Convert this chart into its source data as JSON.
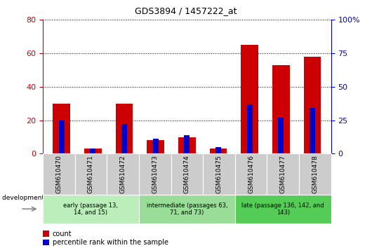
{
  "title": "GDS3894 / 1457222_at",
  "samples": [
    "GSM610470",
    "GSM610471",
    "GSM610472",
    "GSM610473",
    "GSM610474",
    "GSM610475",
    "GSM610476",
    "GSM610477",
    "GSM610478"
  ],
  "count_values": [
    30,
    3,
    30,
    8,
    10,
    3,
    65,
    53,
    58
  ],
  "percentile_values": [
    25,
    4,
    22,
    11,
    14,
    5,
    37,
    27,
    34
  ],
  "groups": [
    {
      "label": "early (passage 13,\n14, and 15)",
      "start": 0,
      "end": 3,
      "color": "#bbeebb"
    },
    {
      "label": "intermediate (passages 63,\n71, and 73)",
      "start": 3,
      "end": 6,
      "color": "#99dd99"
    },
    {
      "label": "late (passage 136, 142, and\n143)",
      "start": 6,
      "end": 9,
      "color": "#55cc55"
    }
  ],
  "ylim_left": [
    0,
    80
  ],
  "ylim_right": [
    0,
    100
  ],
  "yticks_left": [
    0,
    20,
    40,
    60,
    80
  ],
  "yticks_right": [
    0,
    25,
    50,
    75,
    100
  ],
  "left_tick_color": "#cc0000",
  "right_tick_color": "#0000cc",
  "count_color": "#cc0000",
  "percentile_color": "#0000cc",
  "grid_color": "#000000",
  "bg_xticklabel": "#cccccc",
  "legend_count_label": "count",
  "legend_percentile_label": "percentile rank within the sample",
  "dev_stage_label": "development stage",
  "red_bar_width": 0.55,
  "blue_bar_width": 0.18
}
